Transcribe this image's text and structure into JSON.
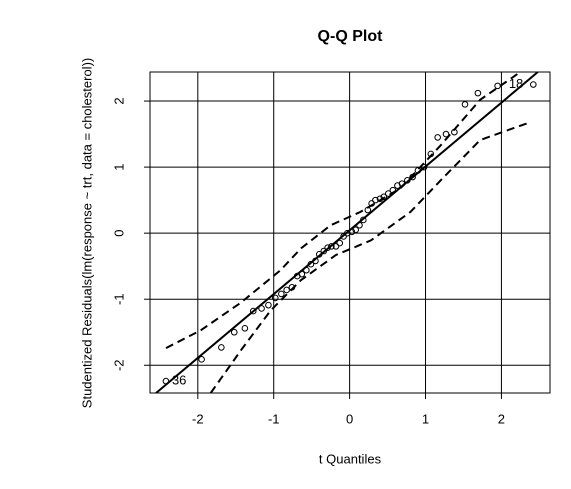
{
  "chart_data": {
    "type": "scatter",
    "title": "Q-Q Plot",
    "xlabel": "t Quantiles",
    "ylabel": "Studentized Residuals(lm(response ~ trt, data = cholesterol))",
    "xlim": [
      -2.63,
      2.64
    ],
    "ylim": [
      -2.42,
      2.44
    ],
    "xticks": [
      -2,
      -1,
      0,
      1,
      2
    ],
    "yticks": [
      -2,
      -1,
      0,
      1,
      2
    ],
    "grid": true,
    "series": [
      {
        "style": "points",
        "color": "#000000",
        "x": [
          -2.42,
          -1.95,
          -1.69,
          -1.52,
          -1.38,
          -1.27,
          -1.16,
          -1.07,
          -0.98,
          -0.9,
          -0.83,
          -0.76,
          -0.69,
          -0.63,
          -0.57,
          -0.51,
          -0.45,
          -0.4,
          -0.34,
          -0.29,
          -0.24,
          -0.18,
          -0.13,
          -0.08,
          -0.03,
          0.03,
          0.08,
          0.13,
          0.18,
          0.24,
          0.29,
          0.34,
          0.4,
          0.45,
          0.51,
          0.57,
          0.63,
          0.69,
          0.76,
          0.83,
          0.9,
          0.98,
          1.07,
          1.16,
          1.27,
          1.38,
          1.52,
          1.69,
          1.95,
          2.42
        ],
        "values": [
          -2.24,
          -1.91,
          -1.73,
          -1.5,
          -1.44,
          -1.18,
          -1.14,
          -1.09,
          -0.98,
          -0.92,
          -0.86,
          -0.82,
          -0.65,
          -0.62,
          -0.56,
          -0.47,
          -0.42,
          -0.32,
          -0.27,
          -0.22,
          -0.2,
          -0.2,
          -0.15,
          -0.05,
          0.0,
          0.02,
          0.05,
          0.12,
          0.2,
          0.35,
          0.45,
          0.5,
          0.52,
          0.55,
          0.6,
          0.65,
          0.72,
          0.75,
          0.8,
          0.85,
          0.95,
          1.0,
          1.2,
          1.45,
          1.5,
          1.53,
          1.95,
          2.12,
          2.23,
          2.25
        ],
        "point_labels": [
          "36",
          null,
          null,
          null,
          null,
          null,
          null,
          null,
          null,
          null,
          null,
          null,
          null,
          null,
          null,
          null,
          null,
          null,
          null,
          null,
          null,
          null,
          null,
          null,
          null,
          null,
          null,
          null,
          null,
          null,
          null,
          null,
          null,
          null,
          null,
          null,
          null,
          null,
          null,
          null,
          null,
          null,
          null,
          null,
          null,
          null,
          null,
          null,
          null,
          "18"
        ]
      },
      {
        "style": "solid",
        "color": "#000000",
        "x": [
          -2.55,
          2.48
        ],
        "values": [
          -2.42,
          2.44
        ]
      },
      {
        "style": "dashed",
        "color": "#000000",
        "x": [
          -2.42,
          -1.96,
          -1.43,
          -0.91,
          -0.64,
          -0.25,
          0.14,
          0.67,
          1.2,
          1.72,
          2.25
        ],
        "values": [
          -1.74,
          -1.47,
          -1.05,
          -0.56,
          -0.23,
          0.12,
          0.32,
          0.68,
          1.33,
          2.02,
          2.44
        ]
      },
      {
        "style": "dashed",
        "color": "#000000",
        "x": [
          -1.83,
          -1.43,
          -1.04,
          -0.64,
          -0.18,
          0.28,
          0.8,
          1.2,
          1.72,
          2.38
        ],
        "values": [
          -2.42,
          -1.77,
          -1.17,
          -0.71,
          -0.33,
          -0.11,
          0.32,
          0.8,
          1.41,
          1.68
        ]
      }
    ]
  }
}
